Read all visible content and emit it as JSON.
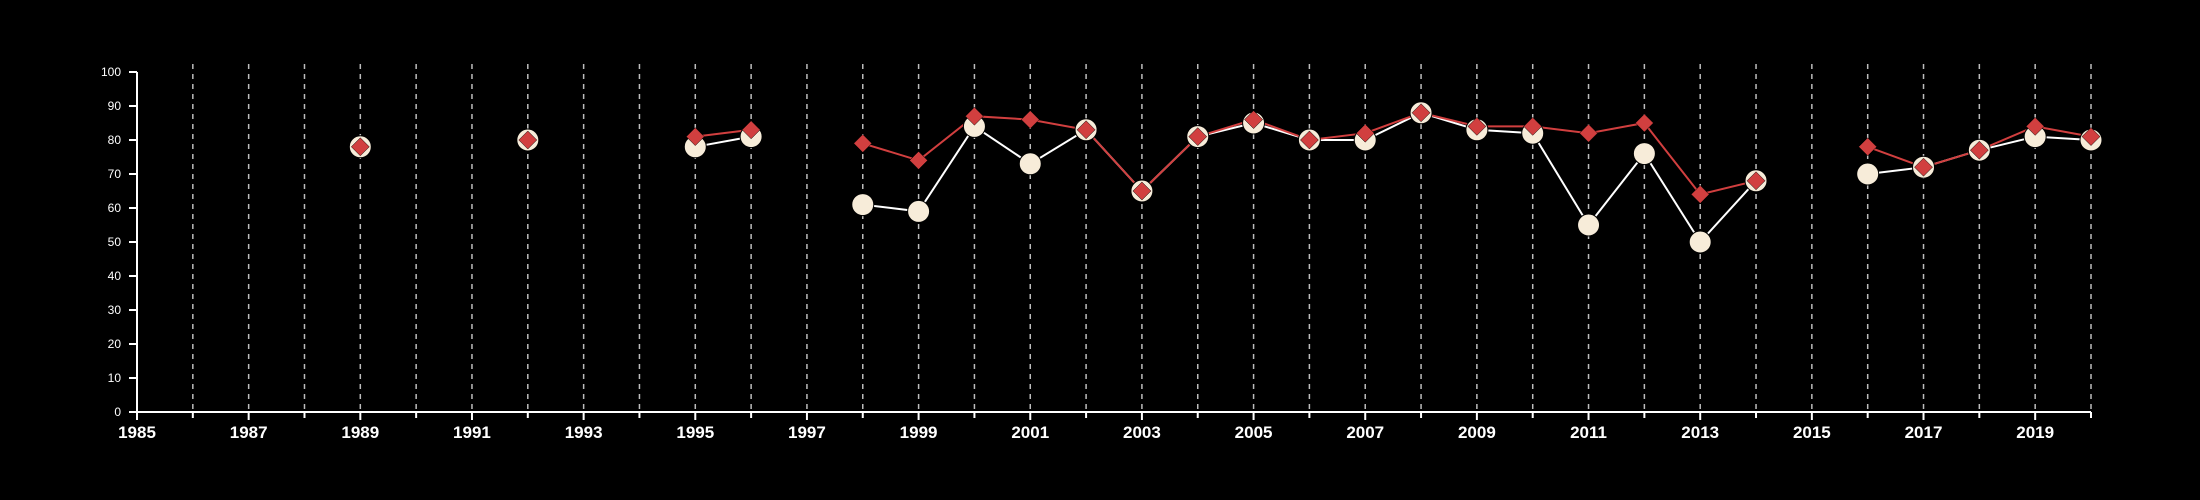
{
  "chart_data": {
    "type": "line",
    "title": "",
    "xlabel": "",
    "ylabel": "",
    "xlim": [
      1985,
      2020
    ],
    "ylim": [
      0,
      100
    ],
    "x_tick_labels": [
      "1985",
      "1987",
      "1989",
      "1991",
      "1993",
      "1995",
      "1997",
      "1999",
      "2001",
      "2003",
      "2005",
      "2007",
      "2009",
      "2011",
      "2013",
      "2015",
      "2017",
      "2019"
    ],
    "y_tick_labels": [
      "0",
      "10",
      "20",
      "30",
      "40",
      "50",
      "60",
      "70",
      "80",
      "90",
      "100"
    ],
    "grid": "vertical dashed lines at every year",
    "legend": "none",
    "background_color": "#000000",
    "axis_color": "#ffffff",
    "grid_color": "#bdbdbd",
    "series": [
      {
        "marker": "circle",
        "color": "#f7ecd9",
        "line_color": "#ffffff",
        "points": [
          {
            "x": 1989,
            "y": 78
          },
          {
            "x": 1992,
            "y": 80
          },
          {
            "x": 1995,
            "y": 78
          },
          {
            "x": 1996,
            "y": 81
          },
          {
            "x": 1998,
            "y": 61
          },
          {
            "x": 1999,
            "y": 59
          },
          {
            "x": 2000,
            "y": 84
          },
          {
            "x": 2001,
            "y": 73
          },
          {
            "x": 2002,
            "y": 83
          },
          {
            "x": 2003,
            "y": 65
          },
          {
            "x": 2004,
            "y": 81
          },
          {
            "x": 2005,
            "y": 85
          },
          {
            "x": 2006,
            "y": 80
          },
          {
            "x": 2007,
            "y": 80
          },
          {
            "x": 2008,
            "y": 88
          },
          {
            "x": 2009,
            "y": 83
          },
          {
            "x": 2010,
            "y": 82
          },
          {
            "x": 2011,
            "y": 55
          },
          {
            "x": 2012,
            "y": 76
          },
          {
            "x": 2013,
            "y": 50
          },
          {
            "x": 2014,
            "y": 68
          },
          {
            "x": 2016,
            "y": 70
          },
          {
            "x": 2017,
            "y": 72
          },
          {
            "x": 2018,
            "y": 77
          },
          {
            "x": 2019,
            "y": 81
          },
          {
            "x": 2020,
            "y": 80
          }
        ]
      },
      {
        "marker": "diamond",
        "color": "#d13f3f",
        "line_color": "#d13f3f",
        "points": [
          {
            "x": 1989,
            "y": 78
          },
          {
            "x": 1992,
            "y": 80
          },
          {
            "x": 1995,
            "y": 81
          },
          {
            "x": 1996,
            "y": 83
          },
          {
            "x": 1998,
            "y": 79
          },
          {
            "x": 1999,
            "y": 74
          },
          {
            "x": 2000,
            "y": 87
          },
          {
            "x": 2001,
            "y": 86
          },
          {
            "x": 2002,
            "y": 83
          },
          {
            "x": 2003,
            "y": 65
          },
          {
            "x": 2004,
            "y": 81
          },
          {
            "x": 2005,
            "y": 86
          },
          {
            "x": 2006,
            "y": 80
          },
          {
            "x": 2007,
            "y": 82
          },
          {
            "x": 2008,
            "y": 88
          },
          {
            "x": 2009,
            "y": 84
          },
          {
            "x": 2010,
            "y": 84
          },
          {
            "x": 2011,
            "y": 82
          },
          {
            "x": 2012,
            "y": 85
          },
          {
            "x": 2013,
            "y": 64
          },
          {
            "x": 2014,
            "y": 68
          },
          {
            "x": 2016,
            "y": 78
          },
          {
            "x": 2017,
            "y": 72
          },
          {
            "x": 2018,
            "y": 77
          },
          {
            "x": 2019,
            "y": 84
          },
          {
            "x": 2020,
            "y": 81
          }
        ]
      }
    ]
  }
}
